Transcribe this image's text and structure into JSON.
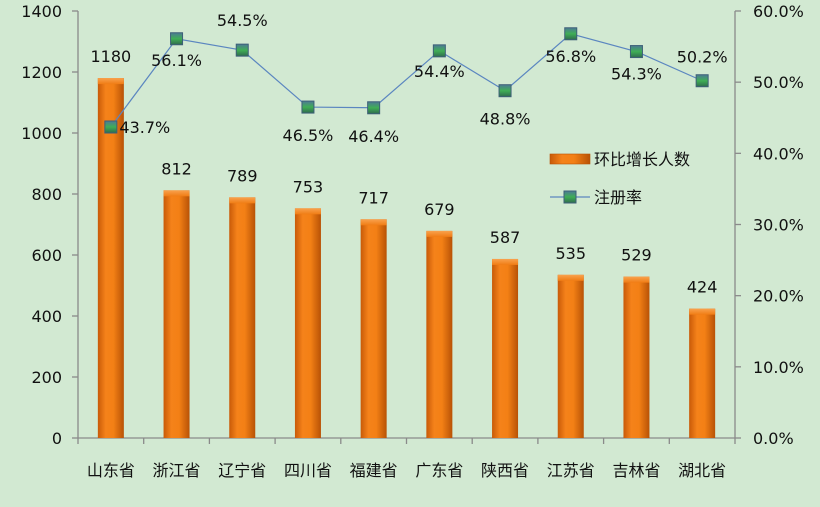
{
  "chart_data": {
    "type": "bar+line",
    "title": "",
    "categories": [
      "山东省",
      "浙江省",
      "辽宁省",
      "四川省",
      "福建省",
      "广东省",
      "陕西省",
      "江苏省",
      "吉林省",
      "湖北省"
    ],
    "series": [
      {
        "name": "环比增长人数",
        "type": "bar",
        "axis": "left",
        "color": "#f07c14",
        "values": [
          1180,
          812,
          789,
          753,
          717,
          679,
          587,
          535,
          529,
          424
        ],
        "labels": [
          "1180",
          "812",
          "789",
          "753",
          "717",
          "679",
          "587",
          "535",
          "529",
          "424"
        ]
      },
      {
        "name": "注册率",
        "type": "line",
        "axis": "right",
        "color": "#5b86c0",
        "marker_color": "#3fae55",
        "values": [
          43.7,
          56.1,
          54.5,
          46.5,
          46.4,
          54.4,
          48.8,
          56.8,
          54.3,
          50.2
        ],
        "labels": [
          "43.7%",
          "56.1%",
          "54.5%",
          "46.5%",
          "46.4%",
          "54.4%",
          "48.8%",
          "56.8%",
          "54.3%",
          "50.2%"
        ]
      }
    ],
    "y_left": {
      "min": 0,
      "max": 1400,
      "step": 200,
      "ticks": [
        "0",
        "200",
        "400",
        "600",
        "800",
        "1000",
        "1200",
        "1400"
      ]
    },
    "y_right": {
      "min": 0,
      "max": 60,
      "step": 10,
      "ticks": [
        "0.0%",
        "10.0%",
        "20.0%",
        "30.0%",
        "40.0%",
        "50.0%",
        "60.0%"
      ]
    },
    "xlabel": "",
    "ylabel": "",
    "grid": false,
    "legend": {
      "position": "right-inside",
      "items": [
        "环比增长人数",
        "注册率"
      ]
    },
    "background": "#d2e9d2"
  }
}
